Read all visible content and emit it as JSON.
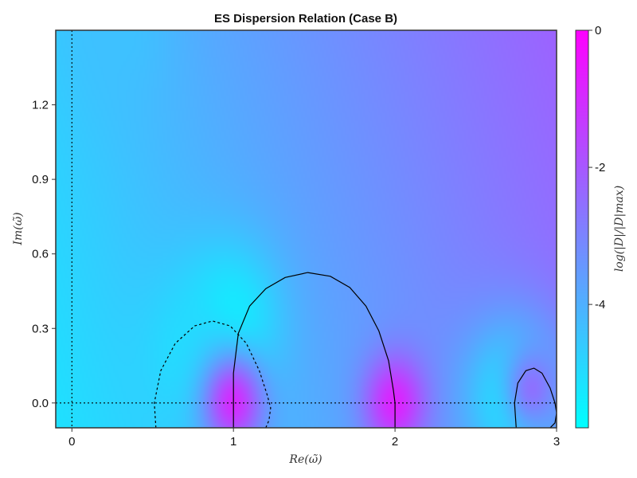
{
  "chart_data": {
    "type": "heatmap",
    "title": "ES Dispersion Relation (Case B)",
    "xlabel": "Re(ω̃)",
    "ylabel": "Im(ω̃)",
    "colorbar_label": "log(|D|/|D|max)",
    "xlim": [
      -0.1,
      3.0
    ],
    "ylim": [
      -0.1,
      1.5
    ],
    "x_ticks": [
      0,
      1,
      2,
      3
    ],
    "x_tick_labels": [
      "0",
      "1",
      "2",
      "3"
    ],
    "y_ticks": [
      0.0,
      0.3,
      0.6,
      0.9,
      1.2
    ],
    "y_tick_labels": [
      "0.0",
      "0.3",
      "0.6",
      "0.9",
      "1.2"
    ],
    "colorbar_range": [
      -5.8,
      0
    ],
    "colorbar_ticks": [
      0,
      -2,
      -4
    ],
    "colorbar_tick_labels": [
      "0",
      "-2",
      "-4"
    ],
    "colormap": [
      "#00ffff",
      "#ff00ff"
    ],
    "grid": false,
    "reference_lines": [
      {
        "orientation": "vertical",
        "value": 0,
        "style": "dotted"
      },
      {
        "orientation": "horizontal",
        "value": 0,
        "style": "dotted"
      }
    ],
    "real_zero_contour": [
      {
        "style": "solid",
        "x": [
          1.0,
          1.0,
          1.03,
          1.1,
          1.2,
          1.32,
          1.46,
          1.6,
          1.72,
          1.82,
          1.9,
          1.96,
          1.99,
          2.0,
          2.0
        ],
        "y": [
          -0.1,
          0.12,
          0.28,
          0.39,
          0.46,
          0.505,
          0.525,
          0.51,
          0.465,
          0.39,
          0.29,
          0.17,
          0.05,
          0.0,
          -0.1
        ]
      },
      {
        "style": "dashed",
        "x": [
          0.52,
          0.51,
          0.55,
          0.64,
          0.76,
          0.87,
          0.98,
          1.08,
          1.16,
          1.21,
          1.23,
          1.22,
          1.2
        ],
        "y": [
          -0.1,
          0.0,
          0.13,
          0.24,
          0.31,
          0.33,
          0.31,
          0.24,
          0.13,
          0.03,
          -0.02,
          -0.07,
          -0.1
        ]
      },
      {
        "style": "solid",
        "x": [
          2.75,
          2.74,
          2.76,
          2.81,
          2.86,
          2.91,
          2.96,
          2.99,
          3.0,
          2.99,
          2.96
        ],
        "y": [
          -0.1,
          0.0,
          0.08,
          0.13,
          0.14,
          0.12,
          0.06,
          0.0,
          -0.04,
          -0.08,
          -0.1
        ]
      }
    ],
    "field_features": [
      {
        "type": "zero",
        "x": 0.98,
        "y": 0.33,
        "strength": -5.5
      },
      {
        "type": "zero",
        "x": 0.72,
        "y": 0.2,
        "strength": -5.0
      },
      {
        "type": "zero",
        "x": 2.74,
        "y": 0.02,
        "strength": -5.6
      },
      {
        "type": "zero",
        "x": 0.3,
        "y": 1.5,
        "strength": -4.4
      },
      {
        "type": "pole",
        "x": 1.0,
        "y": 0.0,
        "strength": -1.0
      },
      {
        "type": "pole",
        "x": 2.0,
        "y": 0.0,
        "strength": -0.8
      },
      {
        "type": "pole",
        "x": 2.85,
        "y": 0.06,
        "strength": -2.6
      }
    ]
  }
}
